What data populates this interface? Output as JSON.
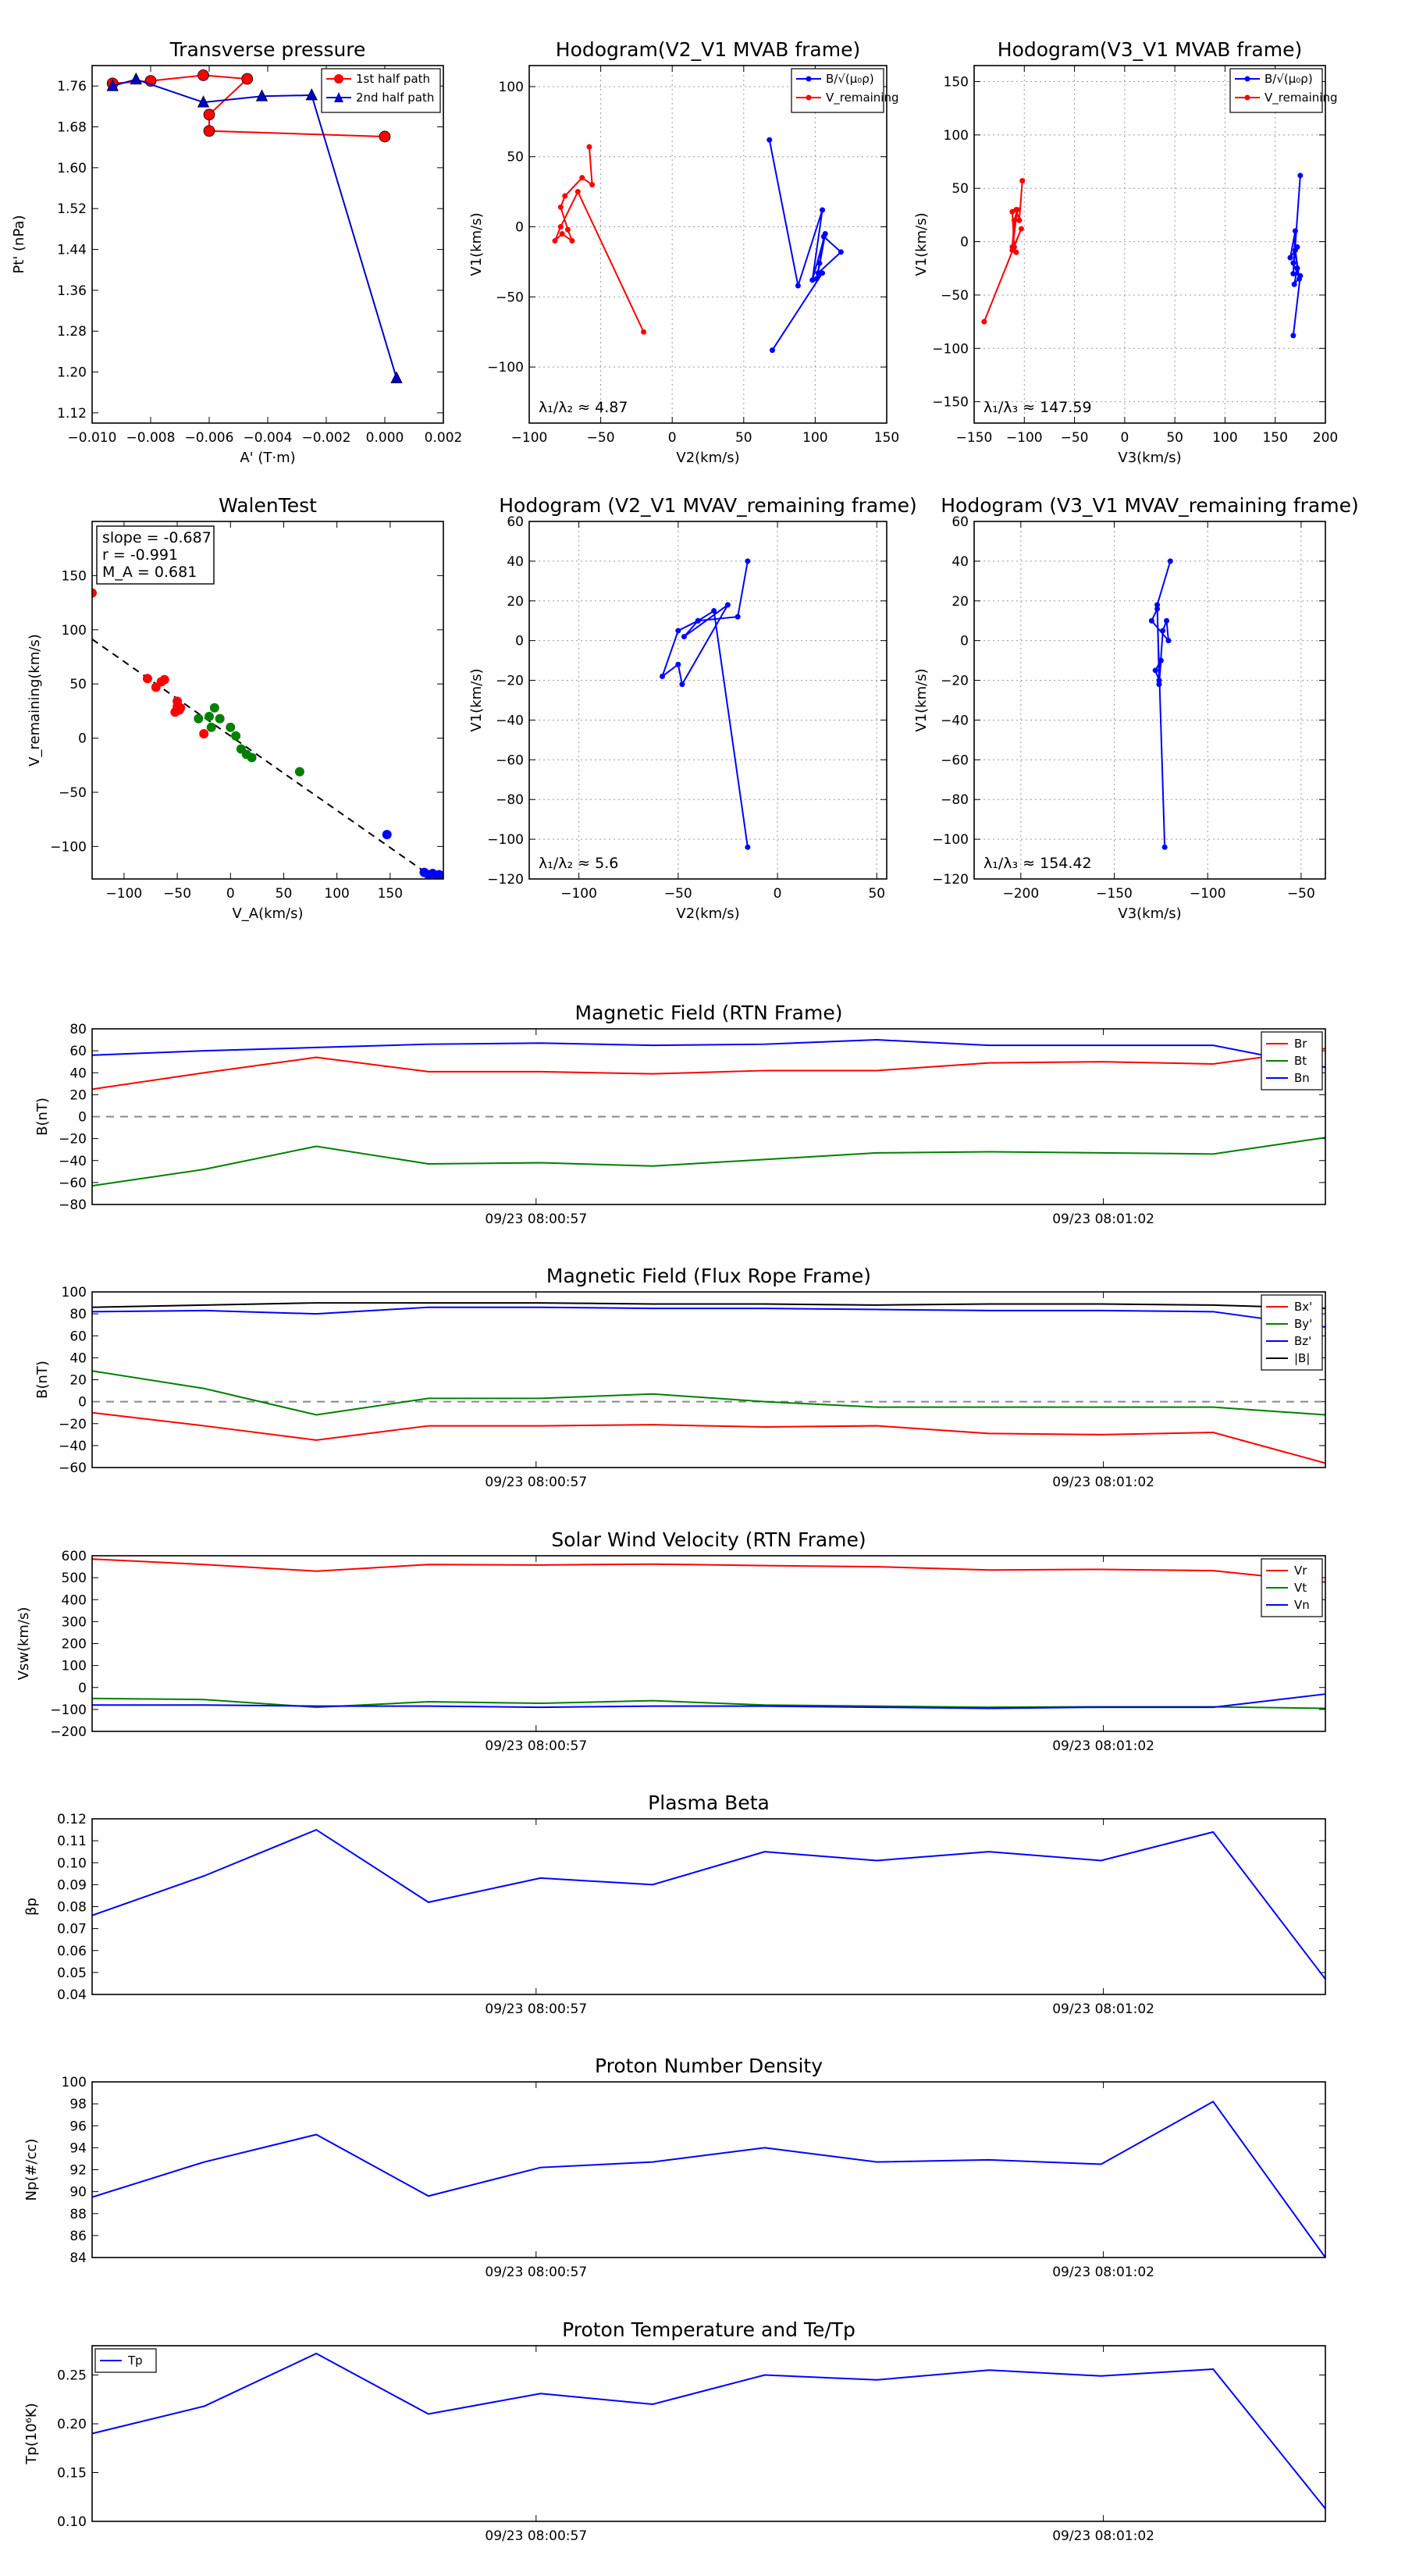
{
  "chart_data": [
    {
      "id": "tp",
      "type": "line",
      "title": "Transverse pressure",
      "xlabel": "A' (T·m)",
      "ylabel": "Pt' (nPa)",
      "xlim": [
        -0.01,
        0.002
      ],
      "ylim": [
        1.1,
        1.8
      ],
      "xticks": [
        -0.01,
        -0.008,
        -0.006,
        -0.004,
        -0.002,
        0.0,
        0.002
      ],
      "xtick_labels": [
        "−0.010",
        "−0.008",
        "−0.006",
        "−0.004",
        "−0.002",
        "0.000",
        "0.002"
      ],
      "yticks": [
        1.12,
        1.2,
        1.28,
        1.36,
        1.44,
        1.52,
        1.6,
        1.68,
        1.76
      ],
      "ytick_labels": [
        "1.12",
        "1.20",
        "1.28",
        "1.36",
        "1.44",
        "1.52",
        "1.60",
        "1.68",
        "1.76"
      ],
      "legend": "top-right",
      "series": [
        {
          "name": "1st half path",
          "color": "#ff0000",
          "marker": "circle",
          "x": [
            0.0,
            -0.006,
            -0.006,
            -0.0047,
            -0.0062,
            -0.008,
            -0.0093
          ],
          "y": [
            1.661,
            1.672,
            1.704,
            1.774,
            1.781,
            1.77,
            1.765
          ]
        },
        {
          "name": "2nd half path",
          "color": "#0000cc",
          "marker": "triangle",
          "x": [
            -0.0093,
            -0.0085,
            -0.0062,
            -0.0042,
            -0.0025,
            0.0004
          ],
          "y": [
            1.76,
            1.773,
            1.728,
            1.74,
            1.742,
            1.188
          ]
        }
      ]
    },
    {
      "id": "h1",
      "type": "line",
      "title": "Hodogram(V2_V1 MVAB frame)",
      "xlabel": "V2(km/s)",
      "ylabel": "V1(km/s)",
      "xlim": [
        -100,
        150
      ],
      "ylim": [
        -140,
        115
      ],
      "xticks": [
        -100,
        -50,
        0,
        50,
        100,
        150
      ],
      "xtick_labels": [
        "−100",
        "−50",
        "0",
        "50",
        "100",
        "150"
      ],
      "yticks": [
        -100,
        -50,
        0,
        50,
        100
      ],
      "ytick_labels": [
        "−100",
        "−50",
        "0",
        "50",
        "100"
      ],
      "annotation": "λ₁/λ₂ ≈ 4.87",
      "legend": "top-right",
      "series": [
        {
          "name": "B/√(μ₀ρ)",
          "color": "#0000ff",
          "marker": "dot",
          "x": [
            68,
            88,
            105,
            98,
            107,
            102,
            118,
            106,
            103,
            101,
            105,
            70
          ],
          "y": [
            62,
            -42,
            12,
            -38,
            -5,
            -33,
            -18,
            -7,
            -26,
            -37,
            -33,
            -88
          ]
        },
        {
          "name": "V_remaining",
          "color": "#ff0000",
          "marker": "dot",
          "x": [
            -58,
            -56,
            -63,
            -75,
            -78,
            -73,
            -70,
            -77,
            -82,
            -78,
            -66,
            -20
          ],
          "y": [
            57,
            30,
            35,
            22,
            14,
            -2,
            -10,
            -5,
            -10,
            0,
            25,
            -75
          ]
        }
      ]
    },
    {
      "id": "h2",
      "type": "line",
      "title": "Hodogram(V3_V1 MVAB frame)",
      "xlabel": "V3(km/s)",
      "ylabel": "V1(km/s)",
      "xlim": [
        -150,
        200
      ],
      "ylim": [
        -170,
        165
      ],
      "xticks": [
        -150,
        -100,
        -50,
        0,
        50,
        100,
        150,
        200
      ],
      "xtick_labels": [
        "−150",
        "−100",
        "−50",
        "0",
        "50",
        "100",
        "150",
        "200"
      ],
      "yticks": [
        -150,
        -100,
        -50,
        0,
        50,
        100,
        150
      ],
      "ytick_labels": [
        "−150",
        "−100",
        "−50",
        "0",
        "50",
        "100",
        "150"
      ],
      "annotation": "λ₁/λ₃ ≈ 147.59",
      "legend": "top-right",
      "series": [
        {
          "name": "B/√(μ₀ρ)",
          "color": "#0000ff",
          "marker": "dot",
          "x": [
            175,
            168,
            170,
            165,
            172,
            168,
            174,
            170,
            172,
            169,
            175,
            168
          ],
          "y": [
            62,
            -30,
            10,
            -15,
            -5,
            -20,
            -35,
            -8,
            -25,
            -40,
            -32,
            -88
          ]
        },
        {
          "name": "V_remaining",
          "color": "#ff0000",
          "marker": "dot",
          "x": [
            -102,
            -105,
            -108,
            -112,
            -110,
            -108,
            -112,
            -110,
            -107,
            -112,
            -103,
            -140
          ],
          "y": [
            57,
            20,
            30,
            28,
            -5,
            -10,
            -5,
            20,
            30,
            -8,
            12,
            -75
          ]
        }
      ]
    },
    {
      "id": "walen",
      "type": "scatter",
      "title": "WalenTest",
      "xlabel": "V_A(km/s)",
      "ylabel": "V_remaining(km/s)",
      "xlim": [
        -130,
        200
      ],
      "ylim": [
        -130,
        200
      ],
      "xticks": [
        -100,
        -50,
        0,
        50,
        100,
        150
      ],
      "xtick_labels": [
        "−100",
        "−50",
        "0",
        "50",
        "100",
        "150"
      ],
      "yticks": [
        -100,
        -50,
        0,
        50,
        100,
        150
      ],
      "ytick_labels": [
        "−100",
        "−50",
        "0",
        "50",
        "100",
        "150"
      ],
      "stats": [
        "slope = -0.687",
        "r = -0.991",
        "M_A = 0.681"
      ],
      "fit": {
        "slope": -0.687,
        "intercept": 2
      },
      "groups": [
        {
          "color": "#ff0000",
          "x": [
            -130,
            -78,
            -70,
            -65,
            -62,
            -50,
            -50,
            -48,
            -52,
            -47,
            -25
          ],
          "y": [
            134,
            55,
            47,
            52,
            54,
            34,
            29,
            26,
            24,
            28,
            4
          ]
        },
        {
          "color": "#008000",
          "x": [
            -30,
            -20,
            -15,
            -18,
            -10,
            0,
            5,
            10,
            15,
            20,
            65
          ],
          "y": [
            18,
            20,
            28,
            10,
            18,
            10,
            2,
            -10,
            -15,
            -18,
            -31
          ]
        },
        {
          "color": "#0000ff",
          "x": [
            147,
            182,
            186,
            190,
            194,
            196,
            198
          ],
          "y": [
            -89,
            -124,
            -126,
            -125,
            -127,
            -126,
            -127
          ]
        }
      ]
    },
    {
      "id": "h3",
      "type": "line",
      "title": "Hodogram (V2_V1 MVAV_remaining frame)",
      "xlabel": "V2(km/s)",
      "ylabel": "V1(km/s)",
      "xlim": [
        -125,
        55
      ],
      "ylim": [
        -120,
        60
      ],
      "xticks": [
        -100,
        -50,
        0,
        50
      ],
      "xtick_labels": [
        "−100",
        "−50",
        "0",
        "50"
      ],
      "yticks": [
        -120,
        -100,
        -80,
        -60,
        -40,
        -20,
        0,
        20,
        40,
        60
      ],
      "ytick_labels": [
        "−120",
        "−100",
        "−80",
        "−60",
        "−40",
        "−20",
        "0",
        "20",
        "40",
        "60"
      ],
      "annotation": "λ₁/λ₂ ≈ 5.6",
      "series": [
        {
          "name": "",
          "color": "#0000ff",
          "marker": "dot",
          "x": [
            -15,
            -20,
            -40,
            -50,
            -58,
            -50,
            -48,
            -25,
            -47,
            -40,
            -32,
            -15
          ],
          "y": [
            40,
            12,
            10,
            5,
            -18,
            -12,
            -22,
            18,
            2,
            10,
            15,
            -104
          ]
        }
      ]
    },
    {
      "id": "h4",
      "type": "line",
      "title": "Hodogram (V3_V1 MVAV_remaining frame)",
      "xlabel": "V3(km/s)",
      "ylabel": "V1(km/s)",
      "xlim": [
        -225,
        -37
      ],
      "ylim": [
        -120,
        60
      ],
      "xticks": [
        -200,
        -150,
        -100,
        -50
      ],
      "xtick_labels": [
        "−200",
        "−150",
        "−100",
        "−50"
      ],
      "yticks": [
        -120,
        -100,
        -80,
        -60,
        -40,
        -20,
        0,
        20,
        40,
        60
      ],
      "ytick_labels": [
        "−120",
        "−100",
        "−80",
        "−60",
        "−40",
        "−20",
        "0",
        "20",
        "40",
        "60"
      ],
      "annotation": "λ₁/λ₃ ≈ 154.42",
      "series": [
        {
          "name": "",
          "color": "#0000ff",
          "marker": "dot",
          "x": [
            -120,
            -127,
            -126,
            -128,
            -125,
            -126,
            -124,
            -122,
            -121,
            -130,
            -127,
            -123
          ],
          "y": [
            40,
            18,
            -20,
            -15,
            -10,
            -22,
            5,
            10,
            0,
            10,
            16,
            -104
          ]
        }
      ]
    },
    {
      "id": "ts1",
      "type": "line",
      "title": "Magnetic Field (RTN Frame)",
      "ylabel": "B(nT)",
      "ylim": [
        -80,
        80
      ],
      "yticks": [
        -80,
        -60,
        -40,
        -20,
        0,
        20,
        40,
        60,
        80
      ],
      "ytick_labels": [
        "−80",
        "−60",
        "−40",
        "−20",
        "0",
        "20",
        "40",
        "60",
        "80"
      ],
      "xticks": [
        0.36,
        0.82
      ],
      "xtick_labels": [
        "09/23 08:00:57",
        "09/23 08:01:02"
      ],
      "zero_line": true,
      "legend": "top-right",
      "x": [
        0,
        0.0909,
        0.1818,
        0.2727,
        0.3636,
        0.4545,
        0.5454,
        0.6363,
        0.7272,
        0.8181,
        0.909,
        1
      ],
      "series": [
        {
          "name": "Br",
          "color": "#ff0000",
          "values": [
            25,
            40,
            54,
            41,
            41,
            39,
            42,
            42,
            49,
            50,
            48,
            62
          ]
        },
        {
          "name": "Bt",
          "color": "#008000",
          "values": [
            -63,
            -48,
            -27,
            -43,
            -42,
            -45,
            -39,
            -33,
            -32,
            -33,
            -34,
            -19
          ]
        },
        {
          "name": "Bn",
          "color": "#0000ff",
          "values": [
            56,
            60,
            63,
            66,
            67,
            65,
            66,
            70,
            65,
            65,
            65,
            45
          ]
        }
      ]
    },
    {
      "id": "ts2",
      "type": "line",
      "title": "Magnetic Field (Flux Rope Frame)",
      "ylabel": "B(nT)",
      "ylim": [
        -60,
        100
      ],
      "yticks": [
        -60,
        -40,
        -20,
        0,
        20,
        40,
        60,
        80,
        100
      ],
      "ytick_labels": [
        "−60",
        "−40",
        "−20",
        "0",
        "20",
        "40",
        "60",
        "80",
        "100"
      ],
      "xticks": [
        0.36,
        0.82
      ],
      "xtick_labels": [
        "09/23 08:00:57",
        "09/23 08:01:02"
      ],
      "zero_line": true,
      "legend": "top-right",
      "x": [
        0,
        0.0909,
        0.1818,
        0.2727,
        0.3636,
        0.4545,
        0.5454,
        0.6363,
        0.7272,
        0.8181,
        0.909,
        1
      ],
      "series": [
        {
          "name": "Bx'",
          "color": "#ff0000",
          "values": [
            -10,
            -22,
            -35,
            -22,
            -22,
            -21,
            -23,
            -22,
            -29,
            -30,
            -28,
            -56
          ]
        },
        {
          "name": "By'",
          "color": "#008000",
          "values": [
            28,
            12,
            -12,
            3,
            3,
            7,
            0,
            -5,
            -5,
            -5,
            -5,
            -12
          ]
        },
        {
          "name": "Bz'",
          "color": "#0000ff",
          "values": [
            82,
            83,
            80,
            86,
            86,
            85,
            85,
            84,
            83,
            83,
            82,
            68
          ]
        },
        {
          "name": "|B|",
          "color": "#000000",
          "values": [
            86,
            88,
            90,
            90,
            90,
            89,
            89,
            88,
            89,
            89,
            88,
            85
          ]
        }
      ]
    },
    {
      "id": "ts3",
      "type": "line",
      "title": "Solar Wind Velocity (RTN Frame)",
      "ylabel": "Vsw(km/s)",
      "ylim": [
        -200,
        600
      ],
      "yticks": [
        -200,
        -100,
        0,
        100,
        200,
        300,
        400,
        500,
        600
      ],
      "ytick_labels": [
        "−200",
        "−100",
        "0",
        "100",
        "200",
        "300",
        "400",
        "500",
        "600"
      ],
      "xticks": [
        0.36,
        0.82
      ],
      "xtick_labels": [
        "09/23 08:00:57",
        "09/23 08:01:02"
      ],
      "legend": "top-right",
      "x": [
        0,
        0.0909,
        0.1818,
        0.2727,
        0.3636,
        0.4545,
        0.5454,
        0.6363,
        0.7272,
        0.8181,
        0.909,
        1
      ],
      "series": [
        {
          "name": "Vr",
          "color": "#ff0000",
          "values": [
            585,
            560,
            530,
            560,
            558,
            562,
            555,
            550,
            535,
            538,
            532,
            480
          ]
        },
        {
          "name": "Vt",
          "color": "#008000",
          "values": [
            -50,
            -55,
            -90,
            -65,
            -72,
            -60,
            -80,
            -85,
            -90,
            -88,
            -88,
            -95
          ]
        },
        {
          "name": "Vn",
          "color": "#0000ff",
          "values": [
            -80,
            -80,
            -85,
            -85,
            -90,
            -85,
            -85,
            -90,
            -95,
            -90,
            -90,
            -30
          ]
        }
      ]
    },
    {
      "id": "ts4",
      "type": "line",
      "title": "Plasma Beta",
      "ylabel": "βp",
      "ylim": [
        0.04,
        0.12
      ],
      "yticks": [
        0.04,
        0.05,
        0.06,
        0.07,
        0.08,
        0.09,
        0.1,
        0.11,
        0.12
      ],
      "ytick_labels": [
        "0.04",
        "0.05",
        "0.06",
        "0.07",
        "0.08",
        "0.09",
        "0.10",
        "0.11",
        "0.12"
      ],
      "xticks": [
        0.36,
        0.82
      ],
      "xtick_labels": [
        "09/23 08:00:57",
        "09/23 08:01:02"
      ],
      "x": [
        0,
        0.0909,
        0.1818,
        0.2727,
        0.3636,
        0.4545,
        0.5454,
        0.6363,
        0.7272,
        0.8181,
        0.909,
        1
      ],
      "series": [
        {
          "name": "beta",
          "color": "#0000ff",
          "values": [
            0.076,
            0.094,
            0.115,
            0.082,
            0.093,
            0.09,
            0.105,
            0.101,
            0.105,
            0.101,
            0.114,
            0.047
          ]
        }
      ]
    },
    {
      "id": "ts5",
      "type": "line",
      "title": "Proton Number Density",
      "ylabel": "Np(#/cc)",
      "ylim": [
        84,
        100
      ],
      "yticks": [
        84,
        86,
        88,
        90,
        92,
        94,
        96,
        98,
        100
      ],
      "ytick_labels": [
        "84",
        "86",
        "88",
        "90",
        "92",
        "94",
        "96",
        "98",
        "100"
      ],
      "xticks": [
        0.36,
        0.82
      ],
      "xtick_labels": [
        "09/23 08:00:57",
        "09/23 08:01:02"
      ],
      "x": [
        0,
        0.0909,
        0.1818,
        0.2727,
        0.3636,
        0.4545,
        0.5454,
        0.6363,
        0.7272,
        0.8181,
        0.909,
        1
      ],
      "series": [
        {
          "name": "Np",
          "color": "#0000ff",
          "values": [
            89.5,
            92.7,
            95.2,
            89.6,
            92.2,
            92.7,
            94.0,
            92.7,
            92.9,
            92.5,
            98.2,
            84.0
          ]
        }
      ]
    },
    {
      "id": "ts6",
      "type": "line",
      "title": "Proton Temperature and Te/Tp",
      "ylabel": "Tp(10⁶K)",
      "ylim": [
        0.1,
        0.28
      ],
      "yticks": [
        0.1,
        0.15,
        0.2,
        0.25
      ],
      "ytick_labels": [
        "0.10",
        "0.15",
        "0.20",
        "0.25"
      ],
      "xticks": [
        0.36,
        0.82
      ],
      "xtick_labels": [
        "09/23 08:00:57",
        "09/23 08:01:02"
      ],
      "legend": "top-left",
      "x": [
        0,
        0.0909,
        0.1818,
        0.2727,
        0.3636,
        0.4545,
        0.5454,
        0.6363,
        0.7272,
        0.8181,
        0.909,
        1
      ],
      "series": [
        {
          "name": "Tp",
          "color": "#0000ff",
          "values": [
            0.19,
            0.218,
            0.272,
            0.21,
            0.231,
            0.22,
            0.25,
            0.245,
            0.255,
            0.249,
            0.256,
            0.113
          ]
        }
      ]
    }
  ]
}
